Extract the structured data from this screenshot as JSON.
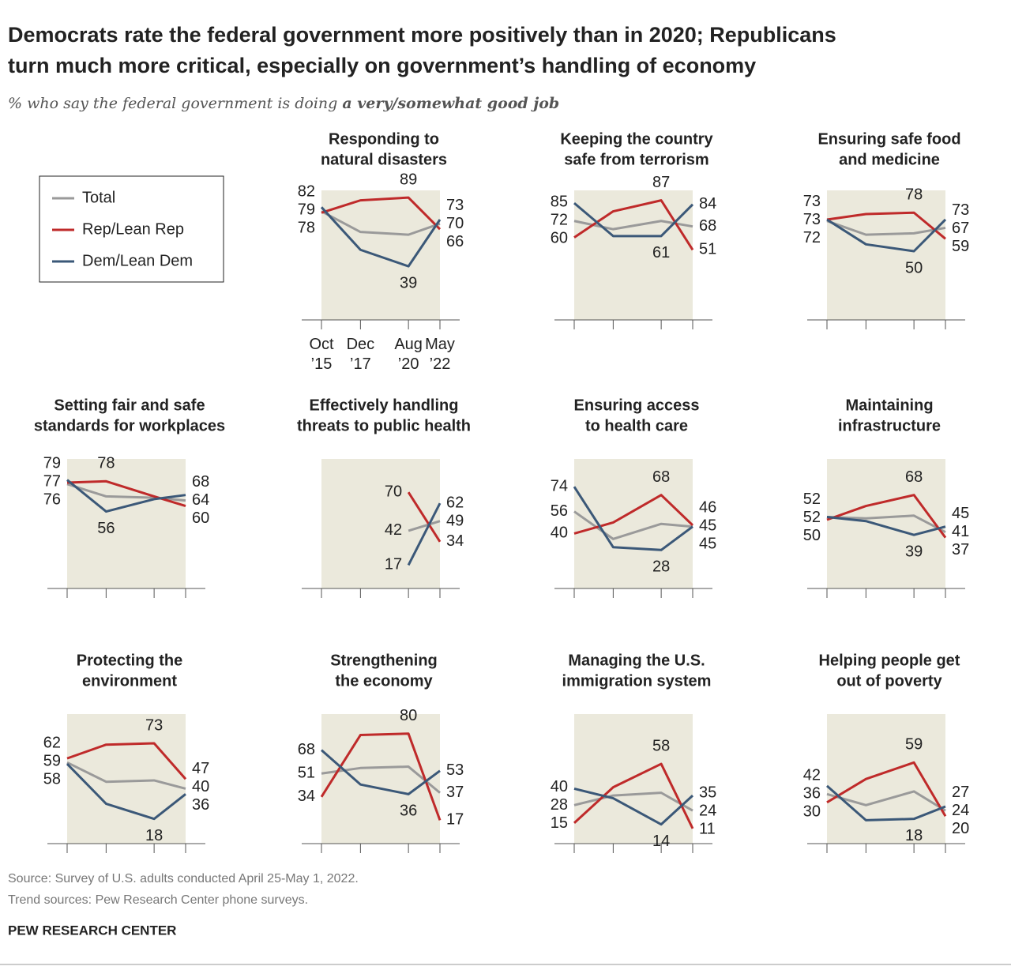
{
  "chart_data": {
    "type": "line",
    "title": [
      "Democrats rate the federal government more positively than in 2020; Republicans",
      "turn much more critical, especially on government’s handling of economy"
    ],
    "subtitle": [
      "% who say the federal government is doing",
      "a very/somewhat good job"
    ],
    "x": [
      "2015-10",
      "2017-12",
      "2020-08",
      "2022-05"
    ],
    "xlim": [
      "2015-10",
      "2022-05"
    ],
    "xticks": [
      {
        "value": "2015-10",
        "label": "Oct ’15"
      },
      {
        "value": "2017-12",
        "label": "Dec ’17"
      },
      {
        "value": "2020-08",
        "label": "Aug ’20"
      },
      {
        "value": "2022-05",
        "label": "May ’22"
      }
    ],
    "ylim": [
      0,
      100
    ],
    "series": [
      {
        "name": "Total",
        "color": "#9a9a9a"
      },
      {
        "name": "Rep/Lean Rep",
        "color": "#bf2a2a"
      },
      {
        "name": "Dem/Lean Dem",
        "color": "#3b5878"
      }
    ],
    "panels": [
      {
        "title": [
          "Responding to",
          "natural disasters"
        ],
        "series": [
          {
            "values": [
              79,
              64,
              62,
              70
            ],
            "value_labels": [
              79,
              null,
              null,
              70
            ]
          },
          {
            "values": [
              78,
              87,
              89,
              66
            ],
            "value_labels": [
              78,
              null,
              89,
              66
            ]
          },
          {
            "values": [
              82,
              51,
              39,
              73
            ],
            "value_labels": [
              82,
              null,
              39,
              73
            ]
          }
        ]
      },
      {
        "title": [
          "Keeping the country",
          "safe from terrorism"
        ],
        "series": [
          {
            "values": [
              72,
              66,
              72,
              68
            ],
            "value_labels": [
              72,
              null,
              null,
              68
            ]
          },
          {
            "values": [
              60,
              79,
              87,
              51
            ],
            "value_labels": [
              60,
              null,
              87,
              51
            ]
          },
          {
            "values": [
              85,
              61,
              61,
              84
            ],
            "value_labels": [
              85,
              null,
              61,
              84
            ]
          }
        ]
      },
      {
        "title": [
          "Ensuring safe food",
          "and medicine"
        ],
        "series": [
          {
            "values": [
              72,
              62,
              63,
              67
            ],
            "value_labels": [
              72,
              null,
              null,
              67
            ]
          },
          {
            "values": [
              73,
              77,
              78,
              59
            ],
            "value_labels": [
              73,
              null,
              78,
              59
            ]
          },
          {
            "values": [
              73,
              55,
              50,
              73
            ],
            "value_labels": [
              73,
              null,
              50,
              73
            ]
          }
        ]
      },
      {
        "title": [
          "Setting fair and safe",
          "standards for workplaces"
        ],
        "series": [
          {
            "values": [
              76,
              67,
              66,
              64
            ],
            "value_labels": [
              76,
              null,
              null,
              64
            ]
          },
          {
            "values": [
              77,
              78,
              67,
              60
            ],
            "value_labels": [
              77,
              78,
              null,
              60
            ]
          },
          {
            "values": [
              79,
              56,
              65,
              68
            ],
            "value_labels": [
              79,
              56,
              null,
              68
            ]
          }
        ]
      },
      {
        "title": [
          "Effectively handling",
          "threats to public health"
        ],
        "series": [
          {
            "values": [
              null,
              null,
              42,
              49
            ],
            "value_labels": [
              null,
              null,
              42,
              49
            ]
          },
          {
            "values": [
              null,
              null,
              70,
              34
            ],
            "value_labels": [
              null,
              null,
              70,
              34
            ]
          },
          {
            "values": [
              null,
              null,
              17,
              62
            ],
            "value_labels": [
              null,
              null,
              17,
              62
            ]
          }
        ]
      },
      {
        "title": [
          "Ensuring access",
          "to health care"
        ],
        "series": [
          {
            "values": [
              56,
              36,
              47,
              45
            ],
            "value_labels": [
              56,
              null,
              null,
              45
            ]
          },
          {
            "values": [
              40,
              48,
              68,
              46
            ],
            "value_labels": [
              40,
              null,
              68,
              46
            ]
          },
          {
            "values": [
              74,
              30,
              28,
              45
            ],
            "value_labels": [
              74,
              null,
              28,
              45
            ]
          }
        ]
      },
      {
        "title": [
          "Maintaining",
          "infrastructure"
        ],
        "series": [
          {
            "values": [
              52,
              51,
              53,
              41
            ],
            "value_labels": [
              52,
              null,
              null,
              41
            ]
          },
          {
            "values": [
              50,
              60,
              68,
              37
            ],
            "value_labels": [
              50,
              null,
              68,
              37
            ]
          },
          {
            "values": [
              52,
              49,
              39,
              45
            ],
            "value_labels": [
              52,
              null,
              39,
              45
            ]
          }
        ]
      },
      {
        "title": [
          "Protecting the",
          "environment"
        ],
        "series": [
          {
            "values": [
              59,
              45,
              46,
              40
            ],
            "value_labels": [
              59,
              null,
              null,
              40
            ]
          },
          {
            "values": [
              62,
              72,
              73,
              47
            ],
            "value_labels": [
              62,
              null,
              73,
              47
            ]
          },
          {
            "values": [
              58,
              29,
              18,
              36
            ],
            "value_labels": [
              58,
              null,
              18,
              36
            ]
          }
        ]
      },
      {
        "title": [
          "Strengthening",
          "the economy"
        ],
        "series": [
          {
            "values": [
              51,
              55,
              56,
              37
            ],
            "value_labels": [
              51,
              null,
              null,
              37
            ]
          },
          {
            "values": [
              34,
              79,
              80,
              17
            ],
            "value_labels": [
              34,
              null,
              80,
              17
            ]
          },
          {
            "values": [
              68,
              43,
              36,
              53
            ],
            "value_labels": [
              68,
              null,
              36,
              53
            ]
          }
        ]
      },
      {
        "title": [
          "Managing the U.S.",
          "immigration system"
        ],
        "series": [
          {
            "values": [
              28,
              35,
              37,
              24
            ],
            "value_labels": [
              28,
              null,
              null,
              24
            ]
          },
          {
            "values": [
              15,
              41,
              58,
              11
            ],
            "value_labels": [
              15,
              null,
              58,
              11
            ]
          },
          {
            "values": [
              40,
              33,
              14,
              35
            ],
            "value_labels": [
              40,
              null,
              14,
              35
            ]
          }
        ]
      },
      {
        "title": [
          "Helping people get",
          "out of poverty"
        ],
        "series": [
          {
            "values": [
              36,
              28,
              38,
              24
            ],
            "value_labels": [
              36,
              null,
              null,
              24
            ]
          },
          {
            "values": [
              30,
              47,
              59,
              20
            ],
            "value_labels": [
              30,
              null,
              59,
              20
            ]
          },
          {
            "values": [
              42,
              17,
              18,
              27
            ],
            "value_labels": [
              42,
              null,
              18,
              27
            ]
          }
        ]
      }
    ],
    "source": [
      "Source: Survey of U.S. adults conducted April 25-May 1, 2022.",
      "Trend sources: Pew Research Center phone surveys."
    ],
    "footer": "PEW RESEARCH CENTER"
  }
}
